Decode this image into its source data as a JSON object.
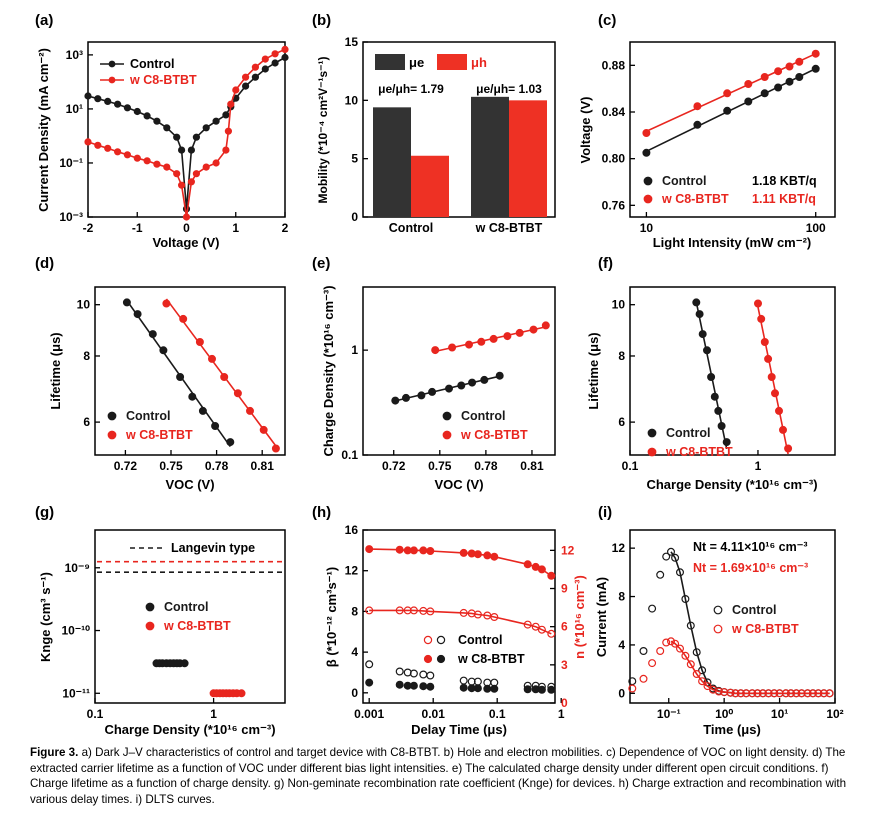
{
  "colors": {
    "control": "#1a1a1a",
    "c8": "#e8261f",
    "bar_control": "#333333",
    "bar_c8": "#ee3124"
  },
  "legend": {
    "control": "Control",
    "c8": "w C8-BTBT"
  },
  "chart_data": [
    {
      "panel": "(a)",
      "type": "line",
      "xlabel": "Voltage (V)",
      "ylabel": "Current Density (mA cm⁻²)",
      "xlim": [
        -2,
        2
      ],
      "ylim": [
        0.001,
        3000
      ],
      "yscale": "log",
      "xticks": [
        "-2",
        "-1",
        "0",
        "1",
        "2"
      ],
      "yticks": [
        "10⁻³",
        "10⁻¹",
        "10¹",
        "10³"
      ],
      "series": [
        {
          "name": "Control",
          "x": [
            -2.0,
            -1.8,
            -1.6,
            -1.4,
            -1.2,
            -1.0,
            -0.8,
            -0.6,
            -0.4,
            -0.2,
            -0.1,
            0.0,
            0.1,
            0.2,
            0.4,
            0.6,
            0.8,
            0.9,
            1.0,
            1.2,
            1.4,
            1.6,
            1.8,
            2.0
          ],
          "y": [
            30,
            24,
            19,
            15,
            11,
            8,
            5.5,
            3.5,
            2,
            0.9,
            0.3,
            0.002,
            0.3,
            0.9,
            2,
            3.5,
            6,
            12,
            25,
            70,
            150,
            300,
            500,
            800
          ]
        },
        {
          "name": "w C8-BTBT",
          "x": [
            -2.0,
            -1.8,
            -1.6,
            -1.4,
            -1.2,
            -1.0,
            -0.8,
            -0.6,
            -0.4,
            -0.2,
            -0.1,
            0.0,
            0.1,
            0.2,
            0.4,
            0.6,
            0.8,
            0.85,
            0.9,
            1.0,
            1.2,
            1.4,
            1.6,
            1.8,
            2.0
          ],
          "y": [
            0.6,
            0.45,
            0.35,
            0.26,
            0.2,
            0.15,
            0.12,
            0.09,
            0.07,
            0.04,
            0.015,
            0.001,
            0.02,
            0.04,
            0.07,
            0.1,
            0.3,
            1.5,
            15,
            50,
            150,
            350,
            700,
            1100,
            1600
          ]
        }
      ]
    },
    {
      "panel": "(b)",
      "type": "bar",
      "ylabel": "Mobility (*10⁻⁴ cm²V⁻¹s⁻¹)",
      "ylim": [
        0,
        15
      ],
      "yticks": [
        "0",
        "5",
        "10",
        "15"
      ],
      "categories": [
        "Control",
        "w C8-BTBT"
      ],
      "series": [
        {
          "name": "μe",
          "values": [
            9.4,
            10.3
          ]
        },
        {
          "name": "μh",
          "values": [
            5.25,
            10.0
          ]
        }
      ],
      "annotations": [
        "μe/μh= 1.79",
        "μe/μh= 1.03"
      ]
    },
    {
      "panel": "(c)",
      "type": "scatter",
      "xlabel": "Light Intensity (mW cm⁻²)",
      "ylabel": "Voltage (V)",
      "xscale": "log",
      "xlim": [
        8,
        130
      ],
      "ylim": [
        0.75,
        0.9
      ],
      "xticks": [
        "10",
        "100"
      ],
      "yticks": [
        "0.76",
        "0.80",
        "0.84",
        "0.88"
      ],
      "series": [
        {
          "name": "Control",
          "label": "1.18 KBT/q",
          "x": [
            10,
            20,
            30,
            40,
            50,
            60,
            70,
            80,
            100
          ],
          "y": [
            0.805,
            0.829,
            0.841,
            0.849,
            0.856,
            0.861,
            0.866,
            0.87,
            0.877
          ]
        },
        {
          "name": "w C8-BTBT",
          "label": "1.11 KBT/q",
          "x": [
            10,
            20,
            30,
            40,
            50,
            60,
            70,
            80,
            100
          ],
          "y": [
            0.822,
            0.845,
            0.856,
            0.864,
            0.87,
            0.875,
            0.879,
            0.883,
            0.89
          ]
        }
      ]
    },
    {
      "panel": "(d)",
      "type": "scatter",
      "xlabel": "VOC (V)",
      "ylabel": "Lifetime (μs)",
      "yscale": "log",
      "xlim": [
        0.7,
        0.825
      ],
      "ylim": [
        5.2,
        10.8
      ],
      "xticks": [
        "0.72",
        "0.75",
        "0.78",
        "0.81"
      ],
      "yticks": [
        "6",
        "8",
        "10"
      ],
      "series": [
        {
          "name": "Control",
          "x": [
            0.721,
            0.728,
            0.738,
            0.745,
            0.756,
            0.764,
            0.771,
            0.779,
            0.789
          ],
          "y": [
            10.1,
            9.6,
            8.8,
            8.2,
            7.3,
            6.7,
            6.3,
            5.9,
            5.5
          ]
        },
        {
          "name": "w C8-BTBT",
          "x": [
            0.747,
            0.758,
            0.769,
            0.777,
            0.785,
            0.794,
            0.802,
            0.811,
            0.819
          ],
          "y": [
            10.05,
            9.4,
            8.5,
            7.9,
            7.3,
            6.8,
            6.3,
            5.8,
            5.35
          ]
        }
      ]
    },
    {
      "panel": "(e)",
      "type": "scatter",
      "xlabel": "VOC (V)",
      "ylabel": "Charge Density (*10¹⁶ cm⁻³)",
      "yscale": "log",
      "xlim": [
        0.7,
        0.825
      ],
      "ylim": [
        0.1,
        4
      ],
      "xticks": [
        "0.72",
        "0.75",
        "0.78",
        "0.81"
      ],
      "yticks": [
        "0.1",
        "1"
      ],
      "series": [
        {
          "name": "Control",
          "x": [
            0.721,
            0.728,
            0.738,
            0.745,
            0.756,
            0.764,
            0.771,
            0.779,
            0.789
          ],
          "y": [
            0.33,
            0.35,
            0.37,
            0.4,
            0.43,
            0.46,
            0.49,
            0.52,
            0.57
          ]
        },
        {
          "name": "w C8-BTBT",
          "x": [
            0.747,
            0.758,
            0.769,
            0.777,
            0.785,
            0.794,
            0.802,
            0.811,
            0.819
          ],
          "y": [
            1.0,
            1.06,
            1.13,
            1.2,
            1.28,
            1.36,
            1.46,
            1.57,
            1.72
          ]
        }
      ]
    },
    {
      "panel": "(f)",
      "type": "scatter",
      "xlabel": "Charge Density (*10¹⁶ cm⁻³)",
      "ylabel": "Lifetime (μs)",
      "xscale": "log",
      "yscale": "log",
      "xlim": [
        0.1,
        4
      ],
      "ylim": [
        5.2,
        10.8
      ],
      "xticks": [
        "0.1",
        "1"
      ],
      "yticks": [
        "6",
        "8",
        "10"
      ],
      "series": [
        {
          "name": "Control",
          "x": [
            0.33,
            0.35,
            0.37,
            0.4,
            0.43,
            0.46,
            0.49,
            0.52,
            0.57
          ],
          "y": [
            10.1,
            9.6,
            8.8,
            8.2,
            7.3,
            6.7,
            6.3,
            5.9,
            5.5
          ]
        },
        {
          "name": "w C8-BTBT",
          "x": [
            1.0,
            1.06,
            1.13,
            1.2,
            1.28,
            1.36,
            1.46,
            1.57,
            1.72
          ],
          "y": [
            10.05,
            9.4,
            8.5,
            7.9,
            7.3,
            6.8,
            6.3,
            5.8,
            5.35
          ]
        }
      ]
    },
    {
      "panel": "(g)",
      "type": "scatter",
      "xlabel": "Charge Density (*10¹⁶ cm⁻³)",
      "ylabel": "Knge (cm³ s⁻¹)",
      "xscale": "log",
      "yscale": "log",
      "xlim": [
        0.1,
        4
      ],
      "ylim": [
        7e-12,
        4e-09
      ],
      "xticks": [
        "0.1",
        "1"
      ],
      "yticks": [
        "10⁻¹¹",
        "10⁻¹⁰",
        "10⁻⁹"
      ],
      "reference_lines": [
        {
          "label": "Langevin type",
          "series": "Control",
          "y": 8.5e-10
        },
        {
          "label": "Langevin type",
          "series": "w C8-BTBT",
          "y": 1.25e-09
        }
      ],
      "series": [
        {
          "name": "Control",
          "x": [
            0.33,
            0.35,
            0.37,
            0.4,
            0.43,
            0.46,
            0.49,
            0.52,
            0.57
          ],
          "y": [
            3e-11,
            3e-11,
            3e-11,
            3e-11,
            3e-11,
            3e-11,
            3e-11,
            3e-11,
            3e-11
          ]
        },
        {
          "name": "w C8-BTBT",
          "x": [
            1.0,
            1.06,
            1.13,
            1.2,
            1.28,
            1.36,
            1.46,
            1.57,
            1.72
          ],
          "y": [
            1e-11,
            1e-11,
            1e-11,
            1e-11,
            1e-11,
            1e-11,
            1e-11,
            1e-11,
            1e-11
          ]
        }
      ]
    },
    {
      "panel": "(h)",
      "type": "scatter",
      "xlabel": "Delay Time (μs)",
      "ylabel": "β (*10⁻¹² cm³s⁻¹)",
      "ylabel_right": "n (*10¹⁶ cm⁻³)",
      "xscale": "log",
      "xlim": [
        0.0008,
        0.8
      ],
      "ylim": [
        -1,
        16
      ],
      "ylim_right": [
        0,
        13.6
      ],
      "xticks": [
        "0.001",
        "0.01",
        "0.1",
        "1"
      ],
      "yticks": [
        "0",
        "4",
        "8",
        "12",
        "16"
      ],
      "yticks_right": [
        "0",
        "3",
        "6",
        "9",
        "12"
      ],
      "x": [
        0.001,
        0.003,
        0.004,
        0.005,
        0.007,
        0.009,
        0.03,
        0.04,
        0.05,
        0.07,
        0.09,
        0.3,
        0.4,
        0.5,
        0.7
      ],
      "series": [
        {
          "name": "Control",
          "marker": "open",
          "axis": "left",
          "values": [
            2.8,
            2.1,
            2.0,
            1.9,
            1.8,
            1.7,
            1.2,
            1.1,
            1.1,
            1.0,
            1.0,
            0.7,
            0.7,
            0.6,
            0.6
          ]
        },
        {
          "name": "w C8-BTBT",
          "marker": "open",
          "axis": "left",
          "values": [
            8.1,
            8.1,
            8.1,
            8.1,
            8.05,
            8.0,
            7.85,
            7.8,
            7.7,
            7.6,
            7.45,
            6.7,
            6.5,
            6.2,
            5.8
          ]
        },
        {
          "name": "Control",
          "marker": "filled",
          "axis": "left",
          "values": [
            1.0,
            0.8,
            0.7,
            0.7,
            0.65,
            0.6,
            0.5,
            0.45,
            0.45,
            0.4,
            0.4,
            0.35,
            0.35,
            0.3,
            0.3
          ]
        },
        {
          "name": "w C8-BTBT",
          "marker": "filled",
          "axis": "right",
          "values": [
            12.1,
            12.05,
            12.0,
            12.0,
            12.0,
            11.95,
            11.8,
            11.75,
            11.7,
            11.6,
            11.5,
            10.9,
            10.7,
            10.5,
            10.0
          ]
        }
      ]
    },
    {
      "panel": "(i)",
      "type": "scatter",
      "xlabel": "Time (μs)",
      "ylabel": "Current (mA)",
      "xscale": "log",
      "xlim": [
        0.02,
        100
      ],
      "ylim": [
        -0.8,
        13.5
      ],
      "xticks": [
        "10⁻¹",
        "10⁰",
        "10¹",
        "10²"
      ],
      "yticks": [
        "0",
        "4",
        "8",
        "12"
      ],
      "annotations": [
        "Nt = 4.11×10¹⁶ cm⁻³",
        "Nt = 1.69×10¹⁶ cm⁻³"
      ],
      "series": [
        {
          "name": "Control",
          "x": [
            0.022,
            0.035,
            0.05,
            0.07,
            0.09,
            0.11,
            0.13,
            0.16,
            0.2,
            0.25,
            0.32,
            0.4,
            0.5,
            0.63,
            0.8,
            1.0,
            1.3,
            1.6,
            2,
            2.5,
            3.2,
            4,
            5,
            6.3,
            8,
            10,
            13,
            16,
            20,
            25,
            32,
            40,
            50,
            63,
            80
          ],
          "y": [
            1.0,
            3.5,
            7.0,
            9.8,
            11.3,
            11.7,
            11.2,
            10.0,
            7.8,
            5.6,
            3.4,
            1.9,
            0.9,
            0.4,
            0.2,
            0.1,
            0.05,
            0,
            0,
            0,
            0,
            0,
            0,
            0,
            0,
            0,
            0,
            0,
            0,
            0,
            0,
            0,
            0,
            0,
            0
          ]
        },
        {
          "name": "w C8-BTBT",
          "x": [
            0.022,
            0.035,
            0.05,
            0.07,
            0.09,
            0.11,
            0.13,
            0.16,
            0.2,
            0.25,
            0.32,
            0.4,
            0.5,
            0.63,
            0.8,
            1.0,
            1.3,
            1.6,
            2,
            2.5,
            3.2,
            4,
            5,
            6.3,
            8,
            10,
            13,
            16,
            20,
            25,
            32,
            40,
            50,
            63,
            80
          ],
          "y": [
            0.4,
            1.2,
            2.5,
            3.5,
            4.2,
            4.3,
            4.1,
            3.7,
            3.1,
            2.4,
            1.6,
            1.0,
            0.6,
            0.3,
            0.15,
            0.1,
            0.05,
            0,
            0,
            0,
            0,
            0,
            0,
            0,
            0,
            0,
            0,
            0,
            0,
            0,
            0,
            0,
            0,
            0,
            0
          ]
        }
      ]
    }
  ],
  "caption": {
    "label": "Figure 3.",
    "text": "a) Dark J–V characteristics of control and target device with C8-BTBT. b) Hole and electron mobilities. c) Dependence of VOC on light density. d) The extracted carrier lifetime as a function of VOC under different bias light intensities. e) The calculated charge density under different open circuit conditions. f) Charge lifetime as a function of charge density. g) Non-geminate recombination rate coefficient (Knge) for devices. h) Charge extraction and recombination with various delay times. i) DLTS curves."
  }
}
